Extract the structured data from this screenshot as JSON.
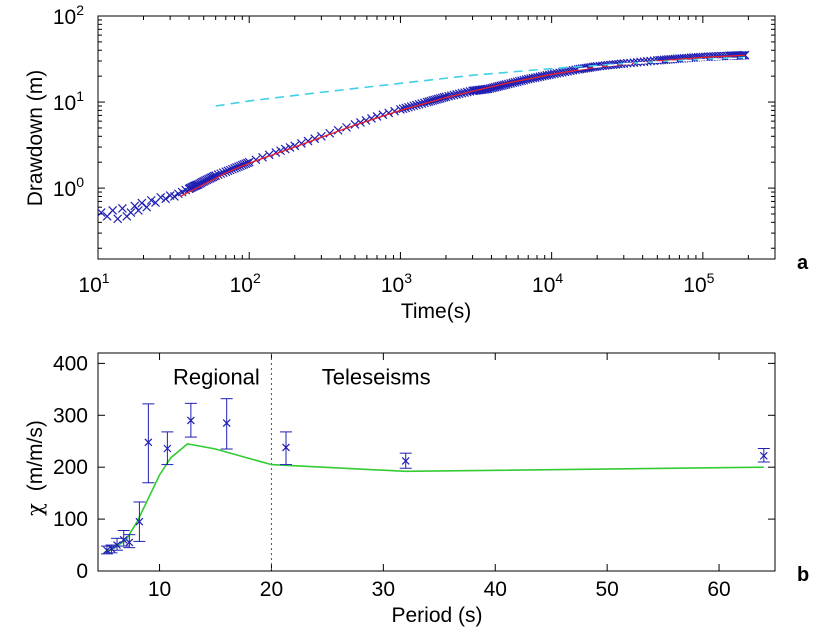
{
  "chart_data": [
    {
      "type": "scatter",
      "panel_label": "a",
      "xlabel": "Time(s)",
      "ylabel": "Drawdown (m)",
      "x_scale": "log",
      "y_scale": "log",
      "xlim": [
        10,
        300000
      ],
      "ylim": [
        0.15,
        100
      ],
      "x_ticks": [
        {
          "value": 10,
          "base": "10",
          "exp": "1"
        },
        {
          "value": 100,
          "base": "10",
          "exp": "2"
        },
        {
          "value": 1000,
          "base": "10",
          "exp": "3"
        },
        {
          "value": 10000,
          "base": "10",
          "exp": "4"
        },
        {
          "value": 100000,
          "base": "10",
          "exp": "5"
        }
      ],
      "y_ticks": [
        {
          "value": 1,
          "base": "10",
          "exp": "0"
        },
        {
          "value": 10,
          "base": "10",
          "exp": "1"
        },
        {
          "value": 100,
          "base": "10",
          "exp": "2"
        }
      ],
      "grid": false,
      "series": [
        {
          "kind": "markers",
          "marker": "x",
          "color": "#1f1fb4",
          "x": [
            10.5,
            11.5,
            12.5,
            13.5,
            14.5,
            15.5,
            16.5,
            17.5,
            18.5,
            19.5,
            21,
            22.5,
            24,
            26,
            28,
            30,
            32,
            34,
            36,
            38,
            40,
            43,
            46,
            50,
            55,
            60,
            70,
            80,
            90,
            100,
            150,
            200,
            300,
            500,
            700,
            1000,
            1500,
            2000,
            3000,
            3800,
            5000,
            7000,
            10000,
            15000,
            20000,
            30000,
            50000,
            70000,
            100000,
            150000,
            190000
          ],
          "y": [
            0.52,
            0.47,
            0.55,
            0.44,
            0.58,
            0.47,
            0.52,
            0.62,
            0.55,
            0.67,
            0.6,
            0.72,
            0.68,
            0.78,
            0.75,
            0.82,
            0.8,
            0.86,
            0.9,
            0.95,
            0.98,
            1.05,
            1.1,
            1.2,
            1.3,
            1.4,
            1.55,
            1.7,
            1.85,
            2.0,
            2.6,
            3.1,
            4.0,
            5.5,
            6.8,
            8.2,
            10.0,
            11.5,
            13.5,
            14.2,
            16.0,
            18.5,
            21.0,
            24.0,
            26.0,
            28.0,
            30.5,
            32.0,
            33.5,
            34.5,
            35.0
          ]
        },
        {
          "kind": "line",
          "style": "solid",
          "color": "#e8202a",
          "x": [
            35,
            50,
            70,
            100,
            200,
            500,
            1000,
            2000,
            5000,
            10000,
            20000,
            50000,
            100000,
            190000
          ],
          "y": [
            0.8,
            1.1,
            1.5,
            1.95,
            3.0,
            5.4,
            8.0,
            11.3,
            16.5,
            21.0,
            25.5,
            30.0,
            33.0,
            35.0
          ]
        },
        {
          "kind": "line",
          "style": "dashed",
          "color": "#3fd0e8",
          "x": [
            60,
            100,
            300,
            1000,
            3000,
            10000,
            30000,
            100000,
            190000
          ],
          "y": [
            9.0,
            10.3,
            13.0,
            16.5,
            20.5,
            24.5,
            28.0,
            31.5,
            33.0
          ]
        },
        {
          "kind": "line",
          "style": "dashed",
          "color": "#ffffff",
          "x": [
            15000,
            30000,
            100000,
            190000
          ],
          "y": [
            24.2,
            27.8,
            31.0,
            32.5
          ]
        }
      ]
    },
    {
      "type": "line",
      "panel_label": "b",
      "xlabel": "Period (s)",
      "ylabel_symbol": "χ",
      "ylabel_unit": "(m/m/s)",
      "xlim": [
        4.5,
        65
      ],
      "ylim": [
        0,
        420
      ],
      "x_ticks": [
        10,
        20,
        30,
        40,
        50,
        60
      ],
      "y_ticks": [
        0,
        100,
        200,
        300,
        400
      ],
      "grid": false,
      "divider_x": 20,
      "annotations": [
        {
          "text": "Regional",
          "x": 11.2,
          "y": 375
        },
        {
          "text": "Teleseisms",
          "x": 24.5,
          "y": 375
        }
      ],
      "model_line": {
        "color": "#33cc33",
        "x": [
          5,
          6,
          7,
          8,
          9,
          10,
          11,
          12.5,
          15,
          20,
          32,
          64
        ],
        "y": [
          35,
          45,
          60,
          95,
          140,
          185,
          218,
          245,
          235,
          205,
          192,
          200
        ]
      },
      "measurements": {
        "color": "#1f1fb4",
        "points": [
          {
            "x": 5.3,
            "y": 40,
            "err_low": 33,
            "err_high": 48
          },
          {
            "x": 5.7,
            "y": 43,
            "err_low": 35,
            "err_high": 50
          },
          {
            "x": 6.2,
            "y": 50,
            "err_low": 40,
            "err_high": 63
          },
          {
            "x": 6.8,
            "y": 60,
            "err_low": 48,
            "err_high": 78
          },
          {
            "x": 7.3,
            "y": 55,
            "err_low": 45,
            "err_high": 70
          },
          {
            "x": 8.2,
            "y": 95,
            "err_low": 57,
            "err_high": 133
          },
          {
            "x": 9.0,
            "y": 248,
            "err_low": 170,
            "err_high": 322
          },
          {
            "x": 10.7,
            "y": 236,
            "err_low": 205,
            "err_high": 268
          },
          {
            "x": 12.8,
            "y": 290,
            "err_low": 258,
            "err_high": 323
          },
          {
            "x": 16.0,
            "y": 285,
            "err_low": 235,
            "err_high": 332
          },
          {
            "x": 21.3,
            "y": 238,
            "err_low": 205,
            "err_high": 268
          },
          {
            "x": 32.0,
            "y": 212,
            "err_low": 198,
            "err_high": 227
          },
          {
            "x": 64.0,
            "y": 222,
            "err_low": 210,
            "err_high": 236
          }
        ]
      }
    }
  ]
}
